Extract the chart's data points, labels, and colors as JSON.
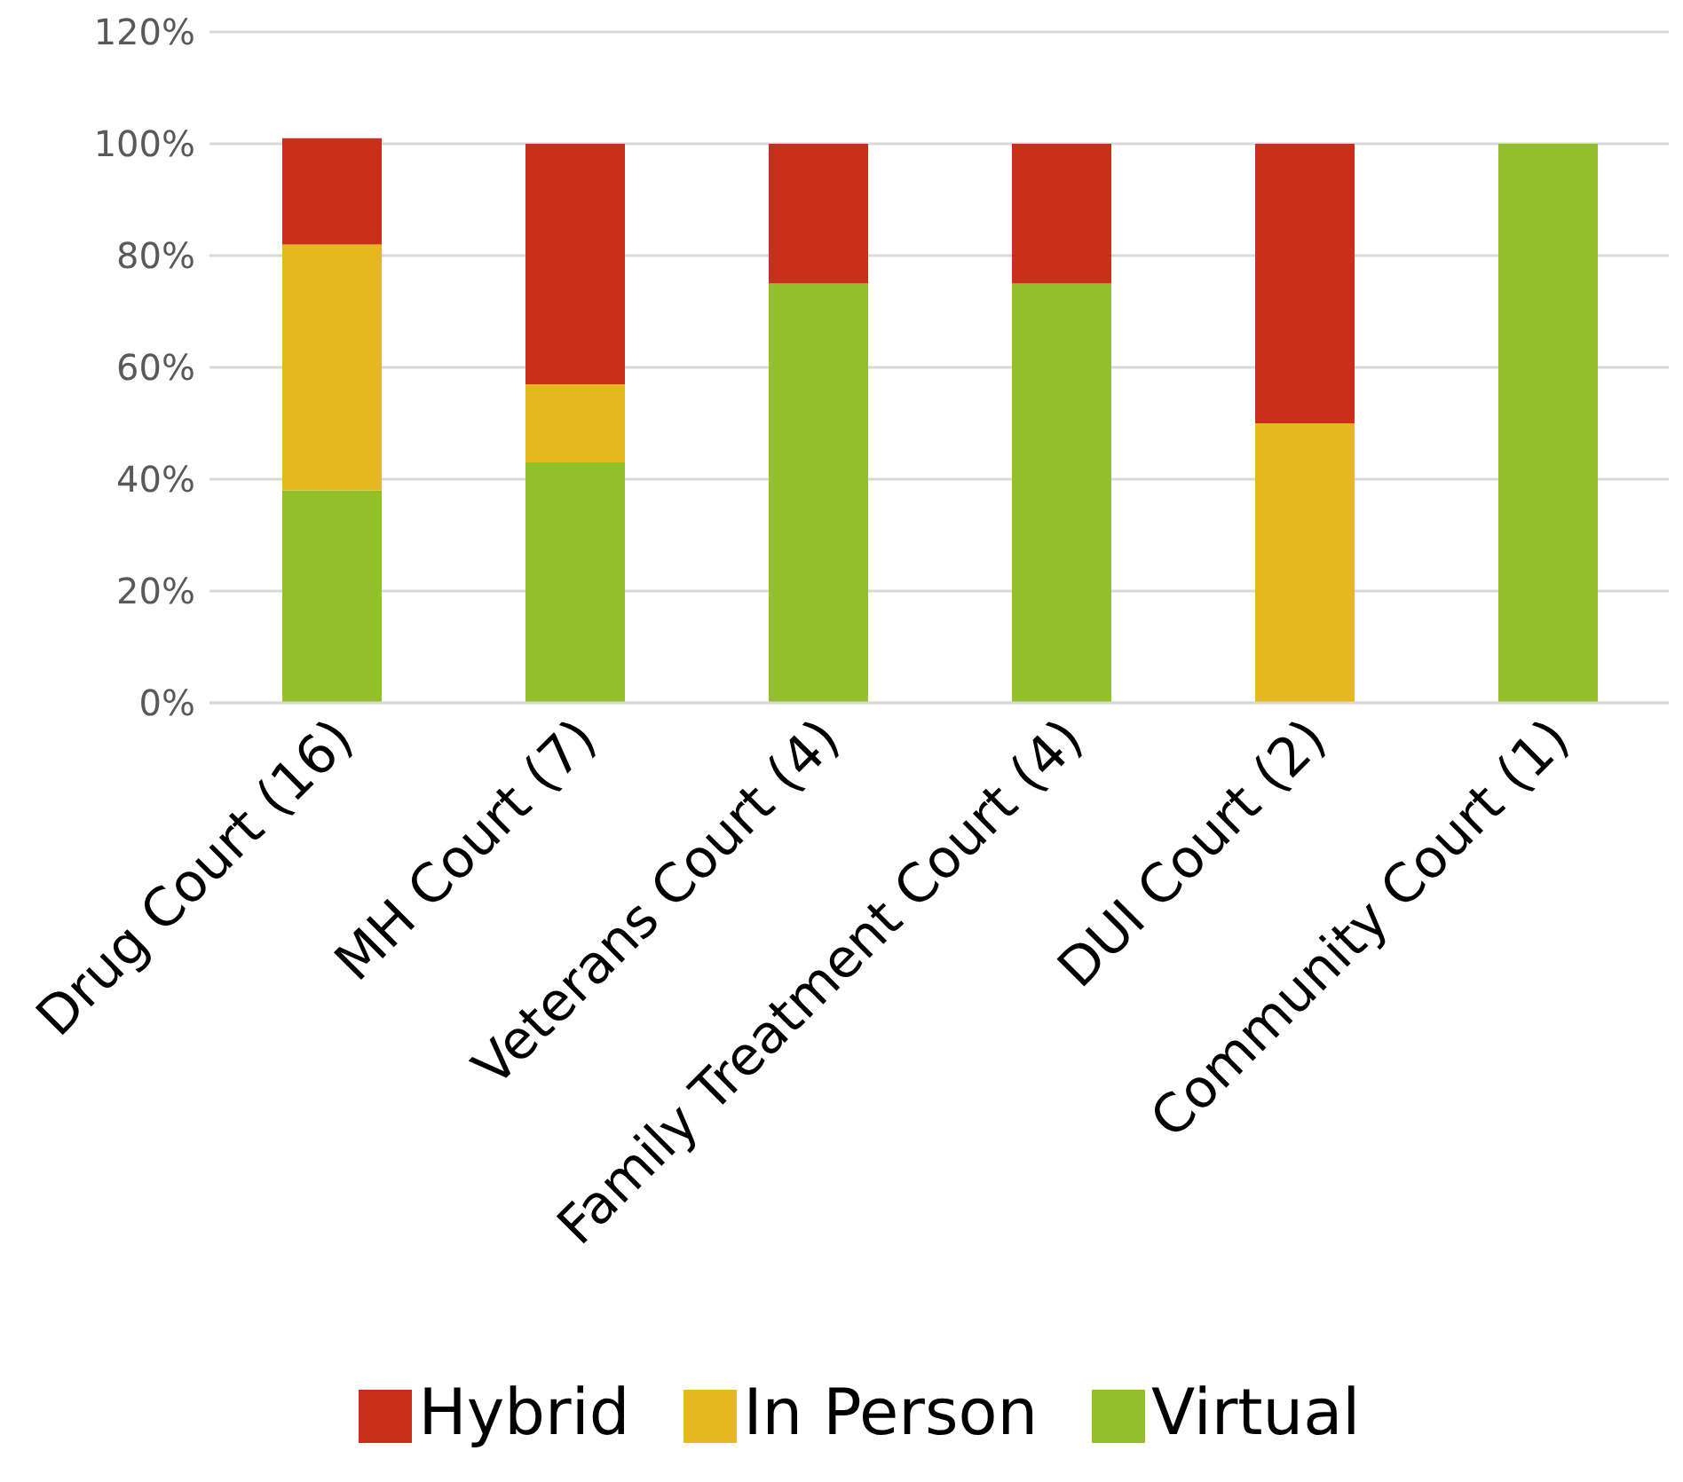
{
  "chart_data": {
    "type": "bar",
    "stacked": true,
    "categories": [
      "Drug Court (16)",
      "MH Court (7)",
      "Veterans Court (4)",
      "Family Treatment Court (4)",
      "DUI Court (2)",
      "Community Court (1)"
    ],
    "series": [
      {
        "name": "Virtual",
        "color": "#92c02a",
        "values": [
          38,
          43,
          75,
          75,
          0,
          100
        ]
      },
      {
        "name": "In Person",
        "color": "#e6b820",
        "values": [
          44,
          14,
          0,
          0,
          50,
          0
        ]
      },
      {
        "name": "Hybrid",
        "color": "#c8301c",
        "values": [
          19,
          43,
          25,
          25,
          50,
          0
        ]
      }
    ],
    "ylim": [
      0,
      120
    ],
    "yticks": [
      {
        "value": 0,
        "label": "0%"
      },
      {
        "value": 20,
        "label": "20%"
      },
      {
        "value": 40,
        "label": "40%"
      },
      {
        "value": 60,
        "label": "60%"
      },
      {
        "value": 80,
        "label": "80%"
      },
      {
        "value": 100,
        "label": "100%"
      },
      {
        "value": 120,
        "label": "120%"
      }
    ],
    "grid": "y",
    "legend": "bottom"
  }
}
